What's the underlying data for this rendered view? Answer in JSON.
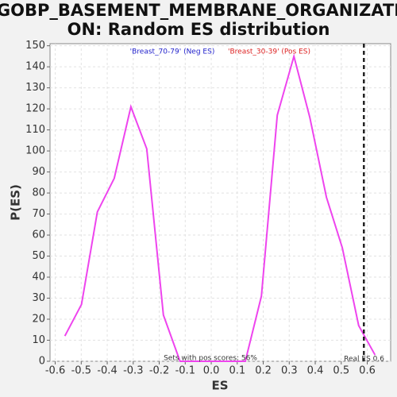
{
  "chart_data": {
    "type": "line",
    "title": [
      "GOBP_BASEMENT_MEMBRANE_ORGANIZATI",
      "ON: Random ES distribution"
    ],
    "x_label": "ES",
    "y_label": "P(ES)",
    "legend_neg": {
      "text": "'Breast_70-79' (Neg ES)",
      "color": "#2222cc"
    },
    "legend_pos": {
      "text": "'Breast_30-39' (Pos ES)",
      "color": "#dd2222"
    },
    "annotation_pos": "Sets with pos scores: 56%",
    "real_es": {
      "value": 0.587,
      "label": "Real ES 0.6"
    },
    "x": [
      -0.563,
      -0.499,
      -0.438,
      -0.373,
      -0.309,
      -0.248,
      -0.184,
      -0.12,
      -0.058,
      0.006,
      0.067,
      0.131,
      0.193,
      0.254,
      0.318,
      0.379,
      0.443,
      0.504,
      0.567,
      0.63
    ],
    "series": [
      {
        "color": "#ee44ee",
        "values": [
          12,
          27,
          71,
          87,
          121,
          101,
          22,
          0,
          0,
          0,
          0,
          0,
          31,
          117,
          145,
          116,
          78,
          54,
          17,
          3
        ]
      }
    ],
    "xlim": [
      -0.62,
      0.69
    ],
    "ylim": [
      0,
      151
    ],
    "xticks": [
      -0.6,
      -0.5,
      -0.4,
      -0.3,
      -0.2,
      -0.1,
      {
        "value": 0,
        "label": "0.0"
      },
      0.1,
      0.2,
      0.3,
      0.4,
      0.5,
      0.6
    ],
    "yticks": [
      0,
      10,
      20,
      30,
      40,
      50,
      60,
      70,
      80,
      90,
      100,
      110,
      120,
      130,
      140,
      150
    ],
    "grid": true
  }
}
